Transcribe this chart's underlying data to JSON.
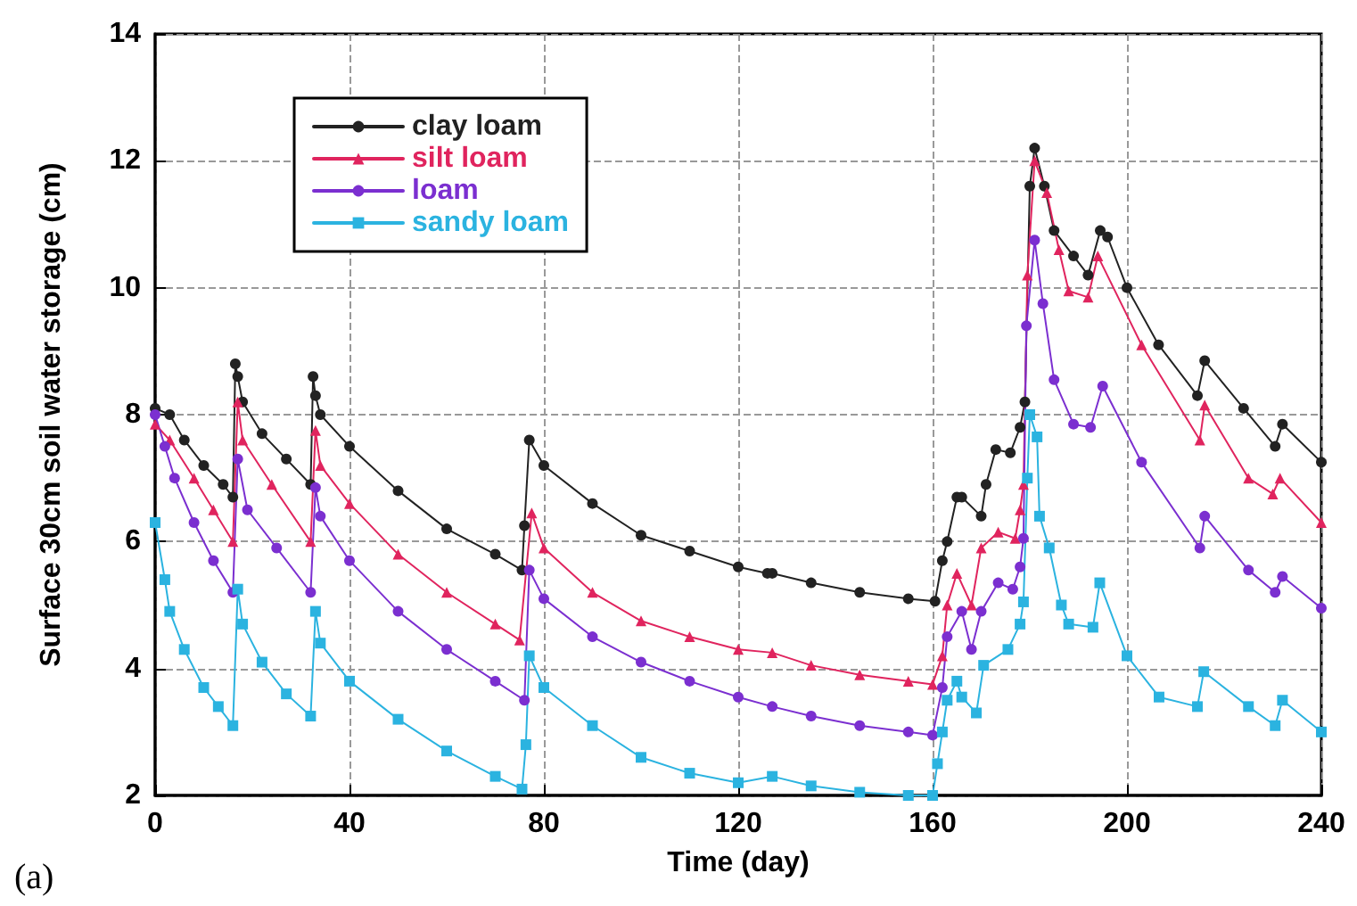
{
  "chart_data": {
    "type": "line",
    "xlabel": "Time (day)",
    "ylabel": "Surface 30cm soil water storage (cm)",
    "annotations": [
      "(a)"
    ],
    "xlim": [
      0,
      240
    ],
    "xticks": [
      0,
      40,
      80,
      120,
      160,
      200,
      240
    ],
    "ylim": [
      2,
      14
    ],
    "yticks": [
      2,
      4,
      6,
      8,
      10,
      12,
      14
    ],
    "grid": true,
    "legend": "top left",
    "line_style": "solid",
    "series": [
      {
        "name": "clay loam",
        "color": "#222222",
        "marker": "circle",
        "x": [
          0,
          3,
          6,
          10,
          14,
          16,
          16.5,
          17,
          18,
          22,
          27,
          32,
          32.5,
          33,
          34,
          40,
          50,
          60,
          70,
          75.5,
          76,
          77,
          80,
          90,
          100,
          110,
          120,
          126,
          127,
          135,
          145,
          155,
          160.5,
          162,
          163,
          165,
          166,
          170,
          171,
          173,
          176,
          178,
          179,
          180,
          181,
          183,
          185,
          189,
          192,
          194.5,
          196,
          200,
          206.5,
          214.5,
          216,
          224,
          230.5,
          232,
          240
        ],
        "values": [
          8.1,
          8.0,
          7.6,
          7.2,
          6.9,
          6.7,
          8.8,
          8.6,
          8.2,
          7.7,
          7.3,
          6.9,
          8.6,
          8.3,
          8.0,
          7.5,
          6.8,
          6.2,
          5.8,
          5.55,
          6.25,
          7.6,
          7.2,
          6.6,
          6.1,
          5.85,
          5.6,
          5.5,
          5.5,
          5.35,
          5.2,
          5.1,
          5.06,
          5.7,
          6.0,
          6.7,
          6.7,
          6.4,
          6.9,
          7.45,
          7.4,
          7.8,
          8.2,
          11.6,
          12.2,
          11.6,
          10.9,
          10.5,
          10.2,
          10.9,
          10.8,
          10.0,
          9.1,
          8.3,
          8.85,
          8.1,
          7.5,
          7.85,
          7.25
        ]
      },
      {
        "name": "silt loam",
        "color": "#e0245e",
        "marker": "triangle",
        "x": [
          0,
          3,
          8,
          12,
          16,
          17,
          18,
          24,
          32,
          33,
          34,
          40,
          50,
          60,
          70,
          75,
          77.5,
          80,
          90,
          100,
          110,
          120,
          127,
          135,
          145,
          155,
          160,
          162,
          163,
          165,
          168,
          170,
          173.5,
          177,
          178,
          178.7,
          179.5,
          181,
          183.5,
          186,
          188,
          192,
          194,
          203,
          215,
          216,
          225,
          230,
          231.5,
          240
        ],
        "values": [
          7.85,
          7.6,
          7.0,
          6.5,
          6.0,
          8.2,
          7.6,
          6.9,
          6.0,
          7.75,
          7.2,
          6.6,
          5.8,
          5.2,
          4.7,
          4.45,
          6.45,
          5.9,
          5.2,
          4.75,
          4.5,
          4.3,
          4.25,
          4.05,
          3.9,
          3.8,
          3.75,
          4.2,
          5.0,
          5.5,
          5.0,
          5.9,
          6.15,
          6.05,
          6.5,
          6.9,
          10.2,
          12.0,
          11.5,
          10.6,
          9.95,
          9.85,
          10.5,
          9.1,
          7.6,
          8.15,
          7.0,
          6.75,
          7.0,
          6.3
        ]
      },
      {
        "name": "loam",
        "color": "#7b2fd0",
        "marker": "circle",
        "x": [
          0,
          2,
          4,
          8,
          12,
          16,
          17,
          19,
          25,
          32,
          33,
          34,
          40,
          50,
          60,
          70,
          76,
          77,
          80,
          90,
          100,
          110,
          120,
          127,
          135,
          145,
          155,
          160,
          162,
          163,
          166,
          168,
          170,
          173.5,
          176.5,
          178,
          178.7,
          179.3,
          181,
          182.7,
          185,
          189,
          192.5,
          195,
          203,
          215,
          216,
          225,
          230.5,
          232,
          240
        ],
        "values": [
          8.0,
          7.5,
          7.0,
          6.3,
          5.7,
          5.2,
          7.3,
          6.5,
          5.9,
          5.2,
          6.85,
          6.4,
          5.7,
          4.9,
          4.3,
          3.8,
          3.5,
          5.55,
          5.1,
          4.5,
          4.1,
          3.8,
          3.55,
          3.4,
          3.25,
          3.1,
          3.0,
          2.95,
          3.7,
          4.5,
          4.9,
          4.3,
          4.9,
          5.35,
          5.25,
          5.6,
          6.05,
          9.4,
          10.75,
          9.75,
          8.55,
          7.85,
          7.8,
          8.45,
          7.25,
          5.9,
          6.4,
          5.55,
          5.2,
          5.45,
          4.95
        ]
      },
      {
        "name": "sandy loam",
        "color": "#2bb3e0",
        "marker": "square",
        "x": [
          0,
          2,
          3,
          6,
          10,
          13,
          16,
          17,
          18,
          22,
          27,
          32,
          33,
          34,
          40,
          50,
          60,
          70,
          75.5,
          76.3,
          77,
          80,
          90,
          100,
          110,
          120,
          127,
          135,
          145,
          155,
          160,
          161,
          162,
          163,
          165,
          166,
          169,
          170.5,
          175.5,
          178,
          178.7,
          179.5,
          180,
          181.5,
          182,
          184,
          186.5,
          188,
          193,
          194.4,
          200,
          206.6,
          214.5,
          215.8,
          225,
          230.5,
          232,
          240
        ],
        "values": [
          6.3,
          5.4,
          4.9,
          4.3,
          3.7,
          3.4,
          3.1,
          5.25,
          4.7,
          4.1,
          3.6,
          3.25,
          4.9,
          4.4,
          3.8,
          3.2,
          2.7,
          2.3,
          2.1,
          2.8,
          4.2,
          3.7,
          3.1,
          2.6,
          2.35,
          2.2,
          2.3,
          2.15,
          2.05,
          2.0,
          2.0,
          2.5,
          3.0,
          3.5,
          3.8,
          3.55,
          3.3,
          4.05,
          4.3,
          4.7,
          5.05,
          7.0,
          8.0,
          7.65,
          6.4,
          5.9,
          5.0,
          4.7,
          4.65,
          5.35,
          4.2,
          3.55,
          3.4,
          3.95,
          3.4,
          3.1,
          3.5,
          3.0
        ]
      }
    ]
  }
}
